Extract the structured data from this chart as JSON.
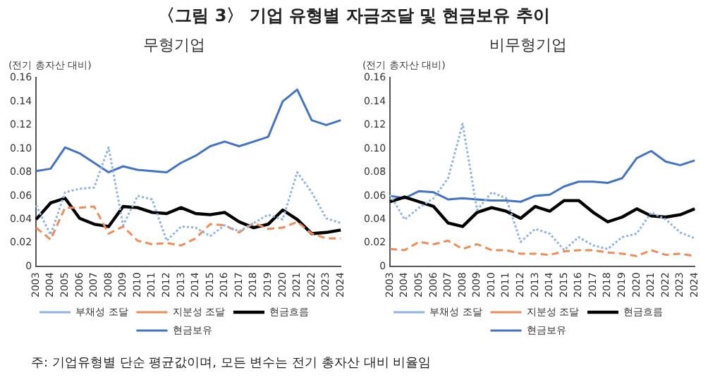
{
  "chart_data": [
    {
      "type": "line",
      "title": "〈그림 3〉 기업 유형별 자금조달 및 현금보유 추이",
      "subtitle": "무형기업",
      "ylabel": "(전기 총자산 대비)",
      "categories": [
        "2003",
        "2004",
        "2005",
        "2006",
        "2007",
        "2008",
        "2009",
        "2010",
        "2011",
        "2012",
        "2013",
        "2014",
        "2015",
        "2016",
        "2017",
        "2018",
        "2019",
        "2020",
        "2021",
        "2022",
        "2023",
        "2024"
      ],
      "series": [
        {
          "name": "부채성 조달",
          "color": "#8fb4e3",
          "line_style": "dotted",
          "values": [
            0.052,
            0.027,
            0.063,
            0.066,
            0.067,
            0.101,
            0.035,
            0.06,
            0.057,
            0.022,
            0.034,
            0.033,
            0.026,
            0.035,
            0.03,
            0.037,
            0.044,
            0.04,
            0.08,
            0.063,
            0.041,
            0.037
          ]
        },
        {
          "name": "지분성 조달",
          "color": "#f08c5a",
          "line_style": "dashed",
          "values": [
            0.033,
            0.023,
            0.05,
            0.05,
            0.051,
            0.028,
            0.034,
            0.022,
            0.019,
            0.02,
            0.018,
            0.024,
            0.036,
            0.035,
            0.029,
            0.037,
            0.032,
            0.033,
            0.038,
            0.028,
            0.024,
            0.024
          ]
        },
        {
          "name": "현금흐름",
          "color": "#000000",
          "line_style": "solid",
          "values": [
            0.04,
            0.054,
            0.058,
            0.041,
            0.036,
            0.034,
            0.051,
            0.05,
            0.046,
            0.045,
            0.05,
            0.045,
            0.044,
            0.046,
            0.038,
            0.033,
            0.036,
            0.048,
            0.04,
            0.028,
            0.029,
            0.031
          ]
        },
        {
          "name": "현금보유",
          "color": "#4472c4",
          "line_style": "solid",
          "values": [
            0.081,
            0.083,
            0.101,
            0.096,
            0.088,
            0.08,
            0.085,
            0.082,
            0.081,
            0.08,
            0.088,
            0.094,
            0.102,
            0.106,
            0.102,
            0.106,
            0.11,
            0.14,
            0.15,
            0.124,
            0.12,
            0.124
          ]
        }
      ],
      "ylim": [
        0,
        0.16
      ],
      "yticks": [
        0,
        {
          "value": 0.02,
          "label": "0.02"
        },
        {
          "value": 0.04,
          "label": "0.04"
        },
        {
          "value": 0.06,
          "label": "0.06"
        },
        {
          "value": 0.08,
          "label": "0.08"
        },
        {
          "value": 0.1,
          "label": "0.10"
        },
        {
          "value": 0.12,
          "label": "0.12"
        },
        {
          "value": 0.14,
          "label": "0.14"
        },
        {
          "value": 0.16,
          "label": "0.16"
        }
      ],
      "grid": false,
      "legend": "bottom",
      "marker": "none",
      "annotations": [
        "주: 기업유형별 단순 평균값이며, 모든 변수는 전기 총자산 대비 비율임"
      ]
    },
    {
      "type": "line",
      "title": "비무형기업",
      "ylabel": "(전기 총자산 대비)",
      "categories": [
        "2003",
        "2004",
        "2005",
        "2006",
        "2007",
        "2008",
        "2009",
        "2010",
        "2011",
        "2012",
        "2013",
        "2014",
        "2015",
        "2016",
        "2017",
        "2018",
        "2019",
        "2020",
        "2021",
        "2022",
        "2023",
        "2024"
      ],
      "series": [
        {
          "name": "부채성 조달",
          "color": "#8fb4e3",
          "line_style": "dotted",
          "values": [
            0.061,
            0.04,
            0.05,
            0.058,
            0.075,
            0.121,
            0.048,
            0.063,
            0.058,
            0.021,
            0.032,
            0.028,
            0.014,
            0.025,
            0.018,
            0.015,
            0.025,
            0.028,
            0.046,
            0.04,
            0.029,
            0.024
          ]
        },
        {
          "name": "지분성 조달",
          "color": "#f08c5a",
          "line_style": "dashed",
          "values": [
            0.015,
            0.014,
            0.021,
            0.019,
            0.022,
            0.015,
            0.019,
            0.014,
            0.014,
            0.011,
            0.011,
            0.01,
            0.013,
            0.014,
            0.014,
            0.012,
            0.011,
            0.009,
            0.014,
            0.01,
            0.011,
            0.009
          ]
        },
        {
          "name": "현금흐름",
          "color": "#000000",
          "line_style": "solid",
          "values": [
            0.055,
            0.059,
            0.055,
            0.051,
            0.037,
            0.034,
            0.046,
            0.05,
            0.047,
            0.041,
            0.051,
            0.047,
            0.056,
            0.056,
            0.046,
            0.038,
            0.042,
            0.049,
            0.043,
            0.042,
            0.044,
            0.049
          ]
        },
        {
          "name": "현금보유",
          "color": "#4472c4",
          "line_style": "solid",
          "values": [
            0.06,
            0.058,
            0.064,
            0.063,
            0.057,
            0.058,
            0.057,
            0.056,
            0.056,
            0.055,
            0.06,
            0.061,
            0.068,
            0.072,
            0.072,
            0.071,
            0.075,
            0.092,
            0.098,
            0.089,
            0.086,
            0.09
          ]
        }
      ],
      "ylim": [
        0,
        0.16
      ],
      "yticks": [
        0,
        {
          "value": 0.02,
          "label": "0.02"
        },
        {
          "value": 0.04,
          "label": "0.04"
        },
        {
          "value": 0.06,
          "label": "0.06"
        },
        {
          "value": 0.08,
          "label": "0.08"
        },
        {
          "value": 0.1,
          "label": "0.10"
        },
        {
          "value": 0.12,
          "label": "0.12"
        },
        {
          "value": 0.14,
          "label": "0.14"
        },
        {
          "value": 0.16,
          "label": "0.16"
        }
      ],
      "grid": false,
      "legend": "bottom",
      "marker": "none"
    }
  ]
}
